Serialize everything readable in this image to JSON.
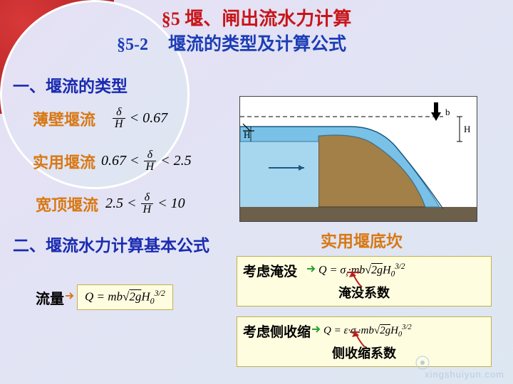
{
  "chapter_title": "§5   堰、闸出流水力计算",
  "section_title_num": "§5-2",
  "section_title_txt": "堰流的类型及计算公式",
  "heading1": "一、堰流的类型",
  "type1_label": "薄壁堰流",
  "type1_rhs": "< 0.67",
  "type2_label": "实用堰流",
  "type2_lhs": "0.67 <",
  "type2_rhs": "< 2.5",
  "type3_label": "宽顶堰流",
  "type3_lhs": "2.5 <",
  "type3_rhs": "< 10",
  "diagram_caption": "实用堰底坎",
  "heading2": "二、堰流水力计算基本公式",
  "flow_label": "流量",
  "base_formula_html": "Q = mb&radic;<span style='text-decoration:overline;'>2g</span>H<sub>0</sub><sup>3/2</sup>",
  "box1_label": "考虑淹没",
  "box1_formula_html": "Q = &sigma;<sub style='font-size:0.55em'>s</sub>&middot;mb&radic;<span style='text-decoration:overline;'>2g</span>H<sub>0</sub><sup>3/2</sup>",
  "box1_sub": "淹没系数",
  "box2_label": "考虑侧收缩",
  "box2_formula_html": "Q = &epsilon;&middot;&sigma;<sub style='font-size:0.55em'>s</sub>&middot;mb&radic;<span style='text-decoration:overline;'>2g</span>H<sub>0</sub><sup>3/2</sup>",
  "box2_sub": "侧收缩系数",
  "dia_H": "H",
  "dia_b": "b",
  "colors": {
    "title_red": "#c8151a",
    "title_blue": "#1c3db5",
    "label_orange": "#d87814",
    "section_blue": "#1a2bb0",
    "box_red": "#b52020",
    "water_fill": "#a7d7ef",
    "weir_fill": "#a38048",
    "ground_fill": "#6c604a"
  }
}
